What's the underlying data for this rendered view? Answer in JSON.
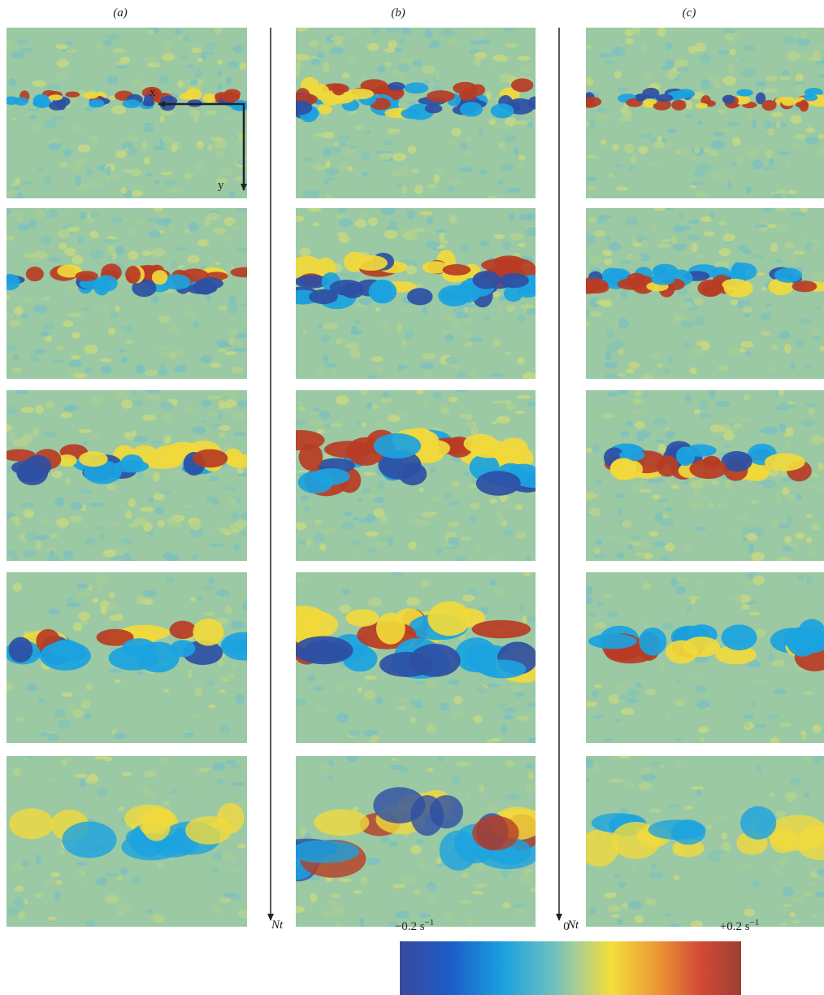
{
  "columns": [
    {
      "label": "(a)"
    },
    {
      "label": "(b)"
    },
    {
      "label": "(c)"
    }
  ],
  "annotations": {
    "x": "x",
    "y": "y",
    "time_axis": "Nt"
  },
  "colorbar": {
    "min": {
      "value": "−0.2",
      "unit": "s",
      "exponent": "−1"
    },
    "mid": "0",
    "max": {
      "value": "+0.2",
      "unit": "s",
      "exponent": "−1"
    }
  }
}
